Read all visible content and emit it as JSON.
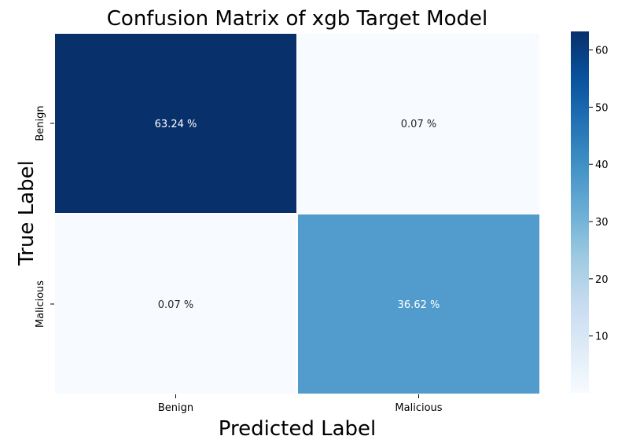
{
  "chart_data": {
    "type": "heatmap",
    "title": "Confusion Matrix of xgb Target Model",
    "xlabel": "Predicted Label",
    "ylabel": "True Label",
    "x_categories": [
      "Benign",
      "Malicious"
    ],
    "y_categories": [
      "Benign",
      "Malicious"
    ],
    "values": [
      [
        63.24,
        0.07
      ],
      [
        0.07,
        36.62
      ]
    ],
    "cell_labels": [
      [
        "63.24 %",
        "0.07 %"
      ],
      [
        "0.07 %",
        "36.62 %"
      ]
    ],
    "colormap": "Blues",
    "color_range": [
      0.07,
      63.24
    ],
    "colorbar_ticks": [
      10,
      20,
      30,
      40,
      50,
      60
    ],
    "colors": {
      "low": "#f7fbff",
      "high": "#08306b",
      "text_dark": "#262626",
      "text_light": "#ffffff"
    }
  }
}
